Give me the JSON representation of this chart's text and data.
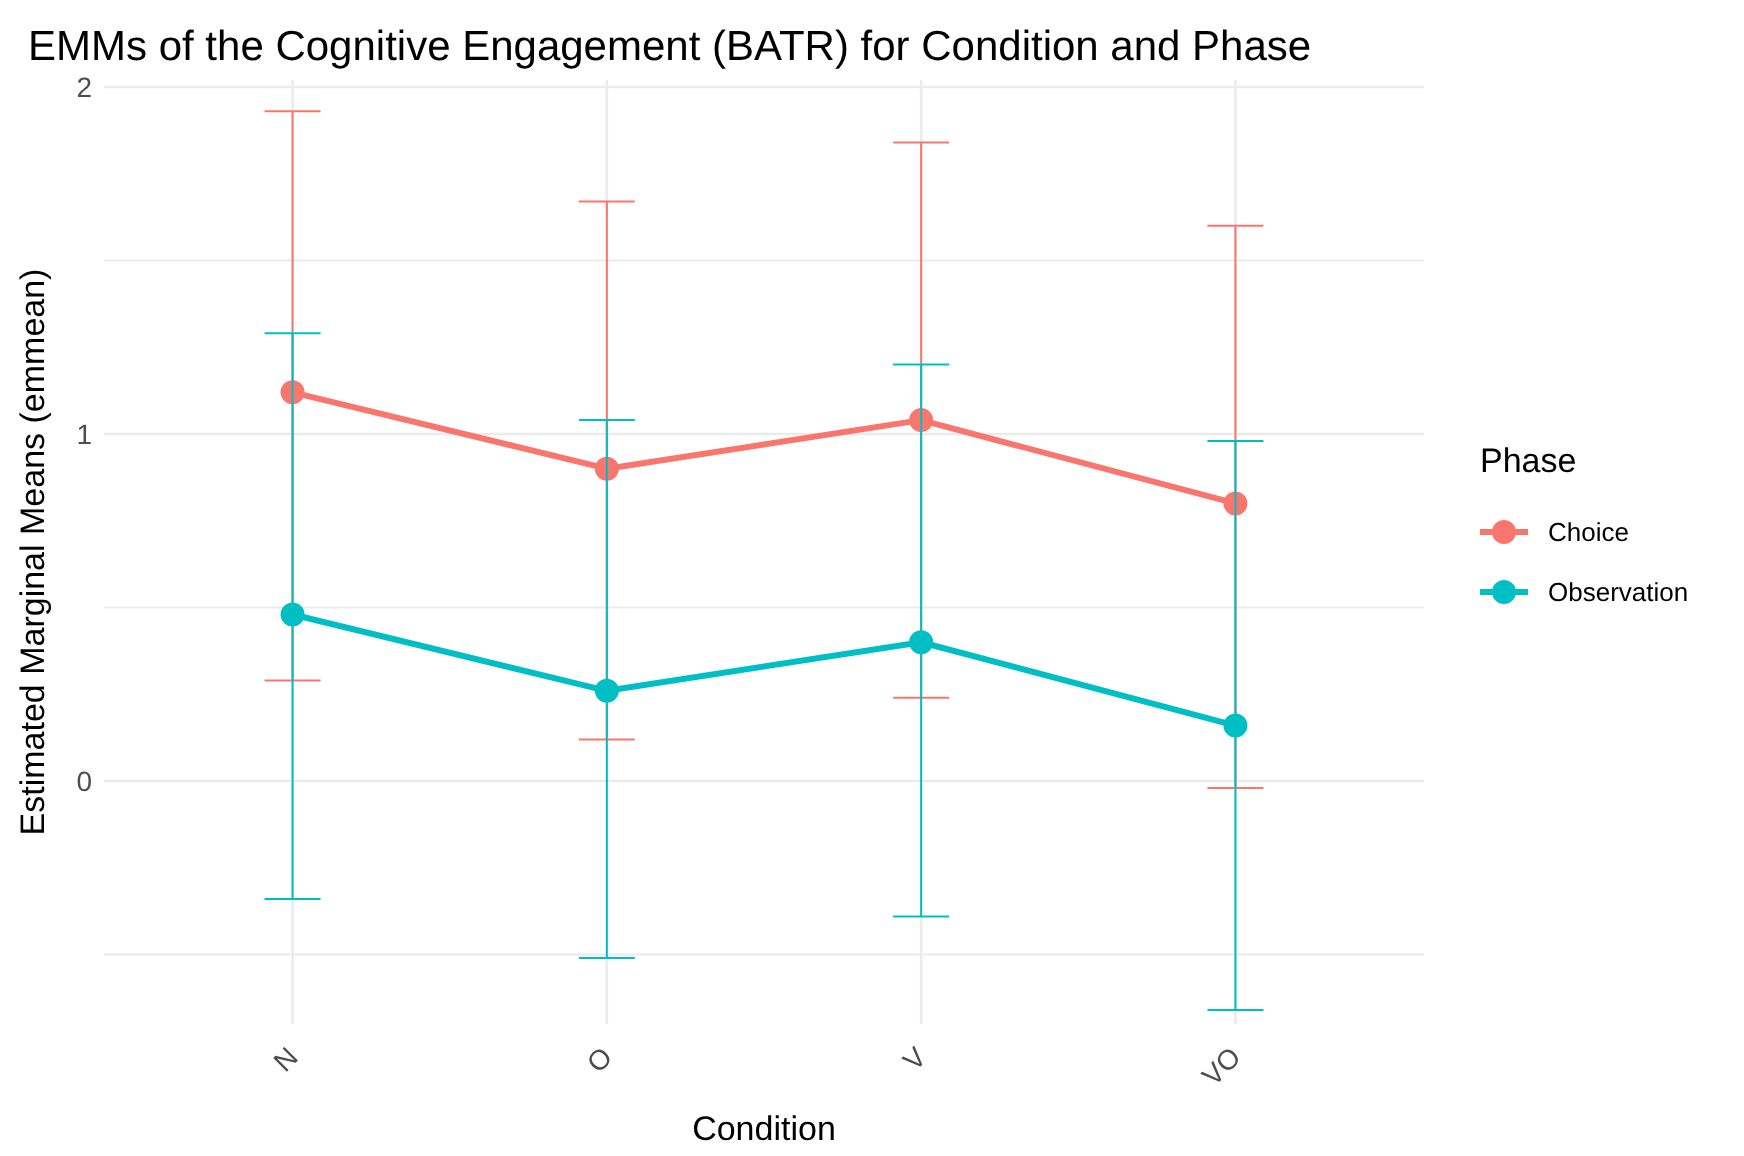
{
  "chart_data": {
    "type": "line",
    "title": "EMMs of the Cognitive Engagement (BATR) for Condition and Phase",
    "xlabel": "Condition",
    "ylabel": "Estimated Marginal Means (emmean)",
    "legend_title": "Phase",
    "categories": [
      "N",
      "O",
      "V",
      "VO"
    ],
    "series": [
      {
        "name": "Choice",
        "color": "#f8766d",
        "values": [
          1.12,
          0.9,
          1.04,
          0.8
        ],
        "errors": [
          [
            0.29,
            1.93
          ],
          [
            0.12,
            1.67
          ],
          [
            0.24,
            1.84
          ],
          [
            -0.02,
            1.6
          ]
        ]
      },
      {
        "name": "Observation",
        "color": "#00bfc4",
        "values": [
          0.48,
          0.26,
          0.4,
          0.16
        ],
        "errors": [
          [
            -0.34,
            1.29
          ],
          [
            -0.51,
            1.04
          ],
          [
            -0.39,
            1.2
          ],
          [
            -0.66,
            0.98
          ]
        ]
      }
    ],
    "ylim": [
      -0.7,
      2.02
    ],
    "yticks": [
      {
        "value": -0.5,
        "label": null
      },
      0,
      {
        "value": 0.5,
        "label": null
      },
      1,
      {
        "value": 1.5,
        "label": null
      },
      2
    ],
    "grid": true,
    "legend": "right",
    "marker": "circle",
    "line_style": "solid"
  }
}
